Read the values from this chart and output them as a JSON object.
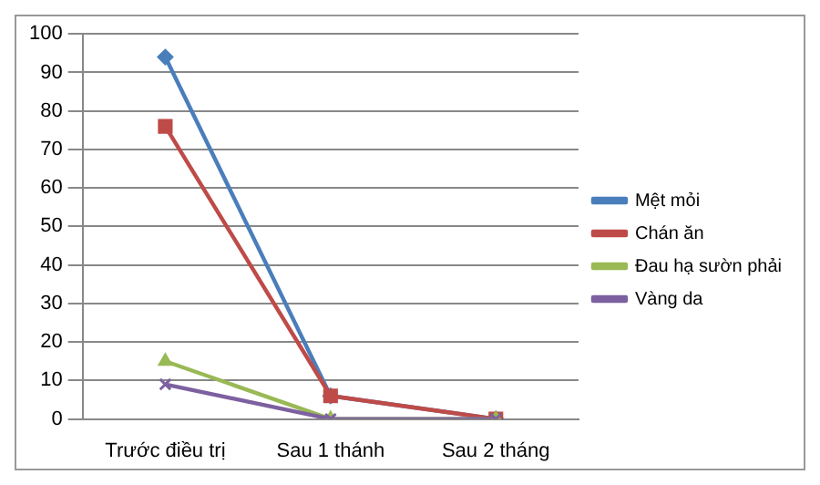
{
  "chart_data": {
    "type": "line",
    "categories": [
      "Trước điều trị",
      "Sau 1 thánh",
      "Sau 2 tháng"
    ],
    "series": [
      {
        "name": "Mệt mỏi",
        "color": "#4a7ebb",
        "values": [
          94,
          6,
          0
        ],
        "marker": "diamond"
      },
      {
        "name": "Chán ăn",
        "color": "#be4b48",
        "values": [
          76,
          6,
          0
        ],
        "marker": "square"
      },
      {
        "name": "Đau hạ sườn phải",
        "color": "#98b954",
        "values": [
          15,
          0,
          0
        ],
        "marker": "triangle"
      },
      {
        "name": "Vàng da",
        "color": "#7d60a0",
        "values": [
          9,
          0,
          0
        ],
        "marker": "cross"
      }
    ],
    "ylim": [
      0,
      100
    ],
    "yticks": [
      0,
      10,
      20,
      30,
      40,
      50,
      60,
      70,
      80,
      90,
      100
    ],
    "grid": "y",
    "legend": "right",
    "line_style": "solid"
  }
}
